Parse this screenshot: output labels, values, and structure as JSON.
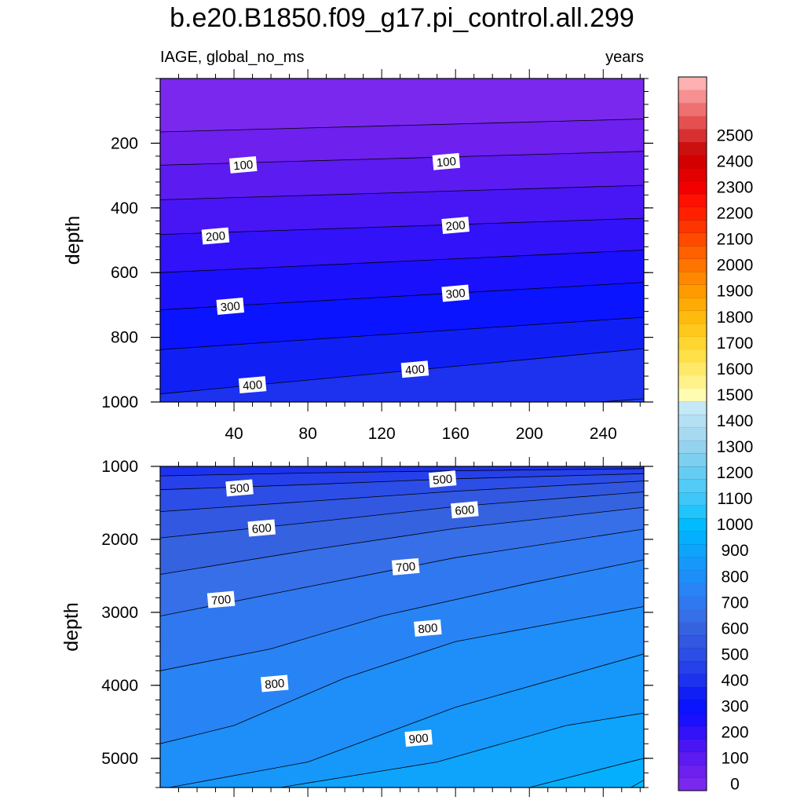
{
  "title": "b.e20.B1850.f09_g17.pi_control.all.299",
  "left_label": "IAGE, global_no_ms",
  "right_label": "years",
  "chart_data": [
    {
      "type": "heatmap",
      "panel": "upper",
      "ylabel": "depth",
      "xlim": [
        0,
        262
      ],
      "ylim": [
        1000,
        0
      ],
      "x_ticks": [
        40,
        80,
        120,
        160,
        200,
        240
      ],
      "y_ticks": [
        200,
        400,
        600,
        800,
        1000
      ],
      "contour_lines": [
        {
          "level": 50,
          "depth_start": 165,
          "depth_end": 125
        },
        {
          "level": 100,
          "depth_start": 268,
          "depth_end": 225
        },
        {
          "level": 150,
          "depth_start": 375,
          "depth_end": 330
        },
        {
          "level": 200,
          "depth_start": 482,
          "depth_end": 432
        },
        {
          "level": 250,
          "depth_start": 600,
          "depth_end": 530
        },
        {
          "level": 300,
          "depth_start": 715,
          "depth_end": 630
        },
        {
          "level": 350,
          "depth_start": 838,
          "depth_end": 738
        },
        {
          "level": 400,
          "depth_start": 975,
          "depth_end": 835
        },
        {
          "level": 450,
          "depth_start": 1100,
          "depth_end": 990
        }
      ],
      "contour_labels": [
        {
          "text": "100",
          "x": 45,
          "depth": 268
        },
        {
          "text": "100",
          "x": 155,
          "depth": 258
        },
        {
          "text": "200",
          "x": 30,
          "depth": 488
        },
        {
          "text": "200",
          "x": 160,
          "depth": 455
        },
        {
          "text": "300",
          "x": 38,
          "depth": 705
        },
        {
          "text": "300",
          "x": 160,
          "depth": 665
        },
        {
          "text": "400",
          "x": 50,
          "depth": 948
        },
        {
          "text": "400",
          "x": 138,
          "depth": 900
        }
      ]
    },
    {
      "type": "heatmap",
      "panel": "lower",
      "ylabel": "depth",
      "xlim": [
        0,
        262
      ],
      "ylim": [
        5400,
        1000
      ],
      "y_ticks": [
        1000,
        2000,
        3000,
        4000,
        5000
      ],
      "contour_lines": [
        {
          "level": 450,
          "points": [
            [
              0,
              1130
            ],
            [
              80,
              1090
            ],
            [
              160,
              1060
            ],
            [
              262,
              1030
            ]
          ]
        },
        {
          "level": 500,
          "points": [
            [
              0,
              1320
            ],
            [
              80,
              1250
            ],
            [
              160,
              1170
            ],
            [
              262,
              1100
            ]
          ]
        },
        {
          "level": 550,
          "points": [
            [
              0,
              1620
            ],
            [
              80,
              1480
            ],
            [
              160,
              1340
            ],
            [
              262,
              1200
            ]
          ]
        },
        {
          "level": 600,
          "points": [
            [
              0,
              1980
            ],
            [
              80,
              1770
            ],
            [
              160,
              1550
            ],
            [
              262,
              1350
            ]
          ]
        },
        {
          "level": 650,
          "points": [
            [
              0,
              2480
            ],
            [
              80,
              2150
            ],
            [
              160,
              1850
            ],
            [
              262,
              1560
            ]
          ]
        },
        {
          "level": 700,
          "points": [
            [
              0,
              3050
            ],
            [
              80,
              2650
            ],
            [
              160,
              2250
            ],
            [
              262,
              1860
            ]
          ]
        },
        {
          "level": 750,
          "points": [
            [
              0,
              3800
            ],
            [
              60,
              3500
            ],
            [
              120,
              3050
            ],
            [
              200,
              2600
            ],
            [
              262,
              2280
            ]
          ]
        },
        {
          "level": 800,
          "points": [
            [
              0,
              4800
            ],
            [
              40,
              4550
            ],
            [
              100,
              3900
            ],
            [
              160,
              3400
            ],
            [
              262,
              2920
            ]
          ]
        },
        {
          "level": 850,
          "points": [
            [
              5,
              5400
            ],
            [
              80,
              5050
            ],
            [
              160,
              4300
            ],
            [
              262,
              3570
            ]
          ]
        },
        {
          "level": 900,
          "points": [
            [
              65,
              5400
            ],
            [
              150,
              5050
            ],
            [
              220,
              4550
            ],
            [
              262,
              4380
            ]
          ]
        },
        {
          "level": 950,
          "points": [
            [
              200,
              5400
            ],
            [
              262,
              5000
            ]
          ]
        },
        {
          "level": 1000,
          "points": [
            [
              255,
              5400
            ],
            [
              262,
              5300
            ]
          ]
        }
      ],
      "contour_labels": [
        {
          "text": "500",
          "x": 43,
          "depth": 1300
        },
        {
          "text": "500",
          "x": 153,
          "depth": 1180
        },
        {
          "text": "600",
          "x": 55,
          "depth": 1850
        },
        {
          "text": "600",
          "x": 165,
          "depth": 1600
        },
        {
          "text": "700",
          "x": 33,
          "depth": 2830
        },
        {
          "text": "700",
          "x": 133,
          "depth": 2380
        },
        {
          "text": "800",
          "x": 62,
          "depth": 3980
        },
        {
          "text": "800",
          "x": 145,
          "depth": 3220
        },
        {
          "text": "900",
          "x": 140,
          "depth": 4730
        }
      ]
    }
  ],
  "colorbar": {
    "labels": [
      "0",
      "100",
      "200",
      "300",
      "400",
      "500",
      "600",
      "700",
      "800",
      "900",
      "1000",
      "1100",
      "1200",
      "1300",
      "1400",
      "1500",
      "1600",
      "1700",
      "1800",
      "1900",
      "2000",
      "2100",
      "2200",
      "2300",
      "2400",
      "2500"
    ],
    "colors": [
      "#7a28ee",
      "#6d20ee",
      "#5c1bf0",
      "#4816f4",
      "#3212f8",
      "#1a10fc",
      "#0a14ff",
      "#1020f5",
      "#1c32ef",
      "#2640ea",
      "#2c4ee6",
      "#3258e2",
      "#3562de",
      "#376fe8",
      "#2f78f0",
      "#2884f5",
      "#1e8ef8",
      "#1598fa",
      "#0ea4fc",
      "#04b0fd",
      "#00bcfe",
      "#22c4fb",
      "#3ec7f8",
      "#52cbf6",
      "#66cdf2",
      "#7ccfef",
      "#94d3ee",
      "#a6daf0",
      "#b4e0f4",
      "#c4e8f6",
      "#fffbb0",
      "#fff28a",
      "#ffe96a",
      "#ffe048",
      "#ffd530",
      "#ffc81c",
      "#ffba0e",
      "#ffab05",
      "#ff9a00",
      "#ff8800",
      "#ff7400",
      "#ff6000",
      "#ff4a00",
      "#ff3400",
      "#ff2000",
      "#ff1000",
      "#f20000",
      "#e30000",
      "#d40000",
      "#cc1010",
      "#d83030",
      "#e45050",
      "#ee7070",
      "#f79090",
      "#ffb0b0"
    ]
  }
}
